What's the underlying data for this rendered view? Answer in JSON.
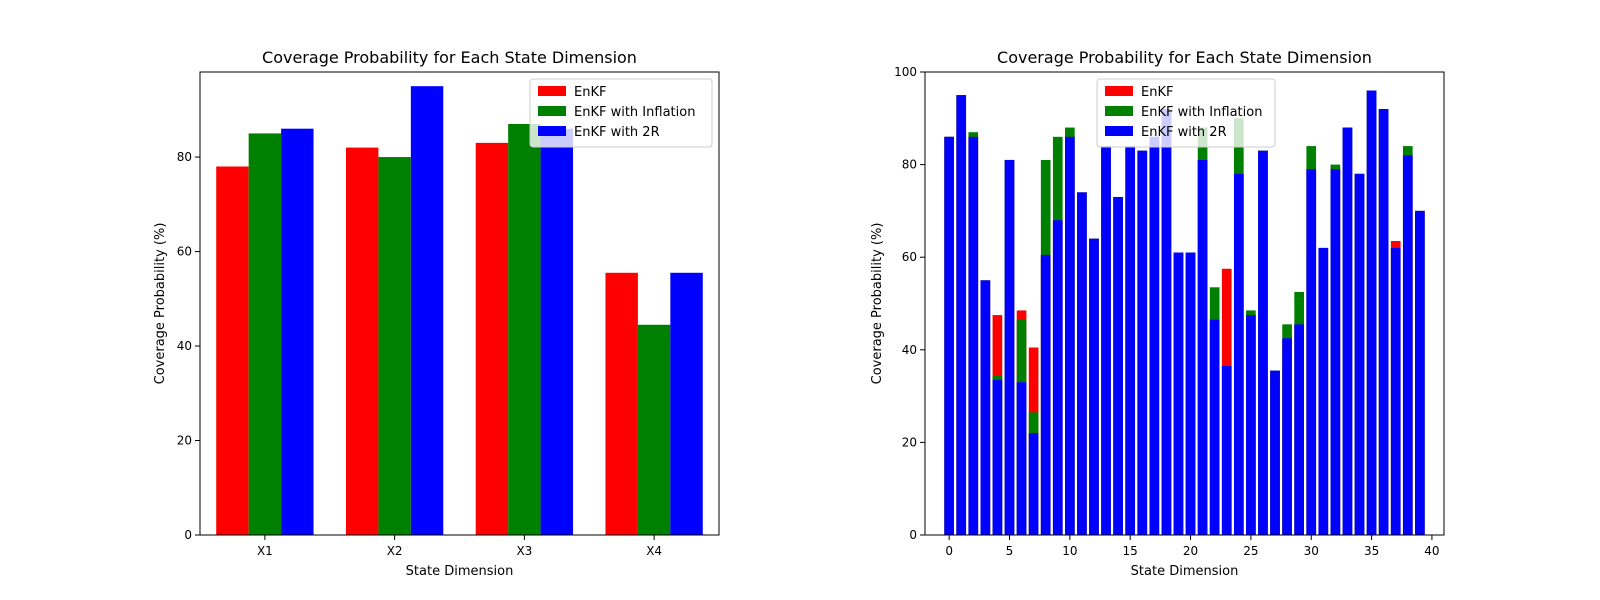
{
  "chart_data": [
    {
      "type": "bar",
      "title": "Coverage Probability for Each State Dimension",
      "xlabel": "State Dimension",
      "ylabel": "Coverage Probability (%)",
      "ylim": [
        0,
        98
      ],
      "yticks": [
        0,
        20,
        40,
        60,
        80
      ],
      "categories": [
        "X1",
        "X2",
        "X3",
        "X4"
      ],
      "legend_position": "top-right",
      "series": [
        {
          "name": "EnKF",
          "color": "#ff0000",
          "values": [
            78,
            82,
            83,
            55.5
          ]
        },
        {
          "name": "EnKF with Inflation",
          "color": "#008000",
          "values": [
            85,
            80,
            87,
            44.5
          ]
        },
        {
          "name": "EnKF with 2R",
          "color": "#0000ff",
          "values": [
            86,
            95,
            86,
            55.5
          ]
        }
      ]
    },
    {
      "type": "bar",
      "title": "Coverage Probability for Each State Dimension",
      "xlabel": "State Dimension",
      "ylabel": "Coverage Probability (%)",
      "ylim": [
        0,
        100
      ],
      "yticks": [
        0,
        20,
        40,
        60,
        80,
        100
      ],
      "xlim": [
        -2,
        41
      ],
      "xticks": [
        0,
        5,
        10,
        15,
        20,
        25,
        30,
        35,
        40
      ],
      "legend_position": "top-center",
      "x": [
        0,
        1,
        2,
        3,
        4,
        5,
        6,
        7,
        8,
        9,
        10,
        11,
        12,
        13,
        14,
        15,
        16,
        17,
        18,
        19,
        20,
        21,
        22,
        23,
        24,
        25,
        26,
        27,
        28,
        29,
        30,
        31,
        32,
        33,
        34,
        35,
        36,
        37,
        38,
        39
      ],
      "series": [
        {
          "name": "EnKF",
          "color": "#ff0000",
          "values": [
            86,
            95,
            86,
            55,
            47.5,
            81,
            48.5,
            40.5,
            60,
            68,
            86,
            74,
            64,
            84,
            73,
            84,
            83,
            86,
            92,
            61,
            61,
            81,
            46,
            57.5,
            78,
            47.5,
            83,
            35.5,
            42,
            45.5,
            79,
            62,
            79,
            88,
            78,
            96,
            92,
            63.5,
            82,
            70
          ]
        },
        {
          "name": "EnKF with Inflation",
          "color": "#008000",
          "values": [
            86,
            95,
            87,
            55,
            34.5,
            81,
            46.5,
            26.5,
            81,
            86,
            88,
            74,
            64,
            84,
            73,
            84,
            83,
            86,
            92,
            61,
            61,
            88,
            53.5,
            36.5,
            90,
            48.5,
            83,
            35.5,
            45.5,
            52.5,
            84,
            62,
            80,
            88,
            78,
            96,
            92,
            62,
            84,
            70
          ]
        },
        {
          "name": "EnKF with 2R",
          "color": "#0000ff",
          "values": [
            86,
            95,
            86,
            55,
            33.5,
            81,
            33,
            22,
            60.5,
            68,
            86,
            74,
            64,
            84,
            73,
            84,
            83,
            86,
            92,
            61,
            61,
            81,
            46.5,
            36.5,
            78,
            47.5,
            83,
            35.5,
            42.5,
            45.5,
            79,
            62,
            79,
            88,
            78,
            96,
            92,
            62,
            82,
            70
          ]
        }
      ]
    }
  ]
}
